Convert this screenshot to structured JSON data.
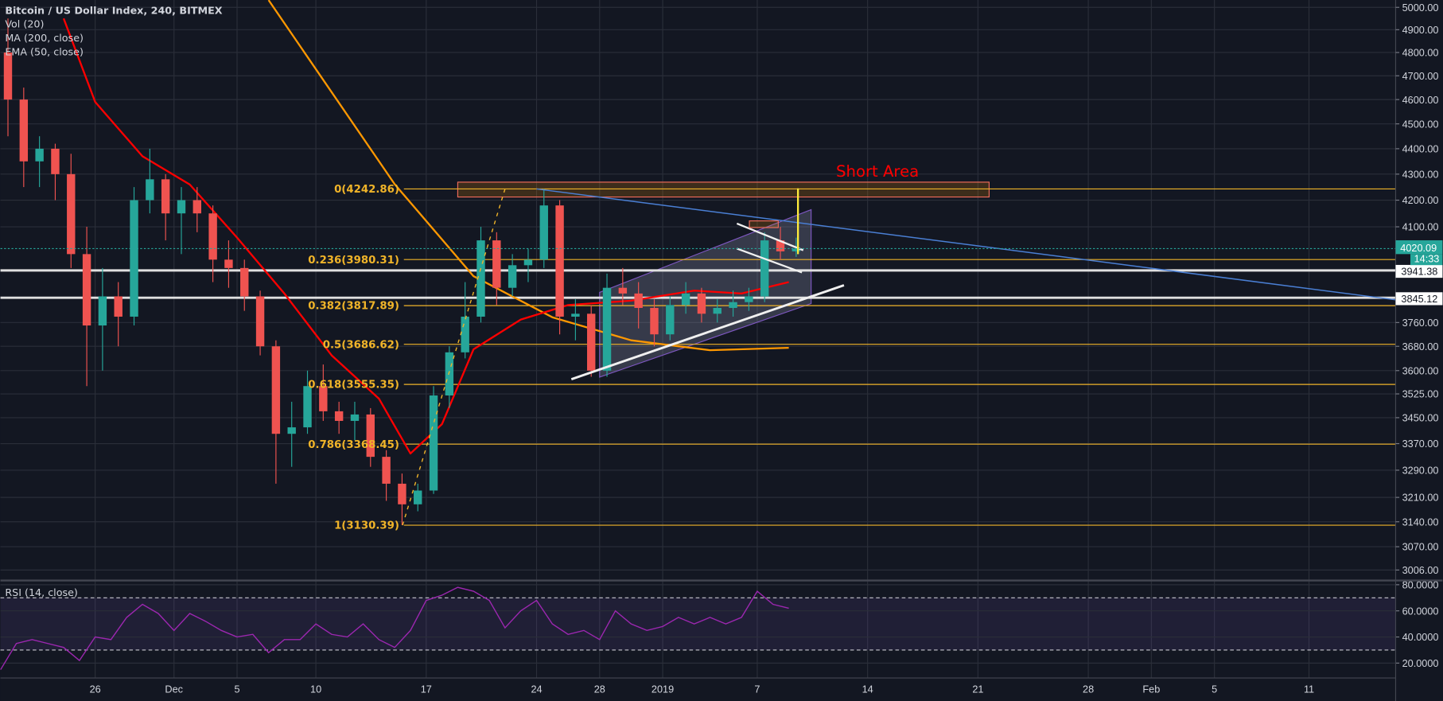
{
  "legend": {
    "title": "Bitcoin / US Dollar Index, 240, BITMEX",
    "indicators": [
      "Vol (20)",
      "MA (200, close)",
      "EMA (50, close)"
    ],
    "rsi_label": "RSI (14, close)"
  },
  "colors": {
    "background": "#131722",
    "grid": "#2a2e39",
    "up": "#26a69a",
    "down": "#ef5350",
    "ma200": "#ff9800",
    "ema50": "#ff0000",
    "fib": "#f0b429",
    "rsi": "#9c27b0",
    "trend_blue": "#4a7fd4",
    "channel": "#7e57c2",
    "short_area_text": "#ff0000"
  },
  "chart_data": [
    {
      "type": "candlestick",
      "scale": "log",
      "ylim": [
        2990,
        5030
      ],
      "xlim": [
        "2018-11-20",
        "2019-02-16"
      ],
      "grid": true,
      "price_axis_labels": [
        "5000.00",
        "4900.00",
        "4800.00",
        "4700.00",
        "4600.00",
        "4500.00",
        "4400.00",
        "4300.00",
        "4200.00",
        "4100.00",
        "3760.00",
        "3680.00",
        "3600.00",
        "3525.00",
        "3450.00",
        "3370.00",
        "3290.00",
        "3210.00",
        "3140.00",
        "3070.00",
        "3006.00"
      ],
      "time_axis": [
        {
          "date": "2018-11-26",
          "label": "26"
        },
        {
          "date": "2018-12-01",
          "label": "Dec"
        },
        {
          "date": "2018-12-05",
          "label": "5"
        },
        {
          "date": "2018-12-10",
          "label": "10"
        },
        {
          "date": "2018-12-17",
          "label": "17"
        },
        {
          "date": "2018-12-24",
          "label": "24"
        },
        {
          "date": "2018-12-28",
          "label": "28"
        },
        {
          "date": "2019-01-01",
          "label": "2019"
        },
        {
          "date": "2019-01-07",
          "label": "7"
        },
        {
          "date": "2019-01-14",
          "label": "14"
        },
        {
          "date": "2019-01-21",
          "label": "21"
        },
        {
          "date": "2019-01-28",
          "label": "28"
        },
        {
          "date": "2019-02-01",
          "label": "Feb"
        },
        {
          "date": "2019-02-05",
          "label": "5"
        },
        {
          "date": "2019-02-11",
          "label": "11"
        }
      ],
      "ohlc": [
        [
          "2018-11-20",
          4800,
          4950,
          4450,
          4600
        ],
        [
          "2018-11-21",
          4600,
          4650,
          4250,
          4350
        ],
        [
          "2018-11-22",
          4350,
          4450,
          4250,
          4400
        ],
        [
          "2018-11-23",
          4400,
          4420,
          4200,
          4300
        ],
        [
          "2018-11-24",
          4300,
          4380,
          3950,
          4000
        ],
        [
          "2018-11-25",
          4000,
          4100,
          3550,
          3750
        ],
        [
          "2018-11-26",
          3750,
          3950,
          3600,
          3850
        ],
        [
          "2018-11-27",
          3850,
          3900,
          3680,
          3780
        ],
        [
          "2018-11-28",
          3780,
          4250,
          3750,
          4200
        ],
        [
          "2018-11-29",
          4200,
          4400,
          4150,
          4280
        ],
        [
          "2018-11-30",
          4280,
          4300,
          4050,
          4150
        ],
        [
          "2018-12-01",
          4150,
          4250,
          4000,
          4200
        ],
        [
          "2018-12-02",
          4200,
          4250,
          4080,
          4150
        ],
        [
          "2018-12-03",
          4150,
          4180,
          3900,
          3980
        ],
        [
          "2018-12-04",
          3980,
          4050,
          3880,
          3950
        ],
        [
          "2018-12-05",
          3950,
          3980,
          3800,
          3850
        ],
        [
          "2018-12-06",
          3850,
          3870,
          3650,
          3680
        ],
        [
          "2018-12-07",
          3680,
          3700,
          3250,
          3400
        ],
        [
          "2018-12-08",
          3400,
          3500,
          3300,
          3420
        ],
        [
          "2018-12-09",
          3420,
          3600,
          3400,
          3550
        ],
        [
          "2018-12-10",
          3550,
          3620,
          3440,
          3470
        ],
        [
          "2018-12-11",
          3470,
          3500,
          3400,
          3440
        ],
        [
          "2018-12-12",
          3440,
          3500,
          3380,
          3460
        ],
        [
          "2018-12-13",
          3460,
          3480,
          3300,
          3330
        ],
        [
          "2018-12-14",
          3330,
          3350,
          3200,
          3250
        ],
        [
          "2018-12-15",
          3250,
          3280,
          3130.39,
          3190
        ],
        [
          "2018-12-16",
          3190,
          3250,
          3170,
          3230
        ],
        [
          "2018-12-17",
          3230,
          3550,
          3220,
          3520
        ],
        [
          "2018-12-18",
          3520,
          3680,
          3480,
          3660
        ],
        [
          "2018-12-19",
          3660,
          3900,
          3640,
          3780
        ],
        [
          "2018-12-20",
          3780,
          4100,
          3760,
          4050
        ],
        [
          "2018-12-21",
          4050,
          4080,
          3820,
          3880
        ],
        [
          "2018-12-22",
          3880,
          4000,
          3850,
          3960
        ],
        [
          "2018-12-23",
          3960,
          4020,
          3900,
          3980
        ],
        [
          "2018-12-24",
          3980,
          4242.86,
          3950,
          4180
        ],
        [
          "2018-12-25",
          4180,
          4200,
          3720,
          3780
        ],
        [
          "2018-12-26",
          3780,
          3840,
          3700,
          3790
        ],
        [
          "2018-12-27",
          3790,
          3820,
          3580,
          3600
        ],
        [
          "2018-12-28",
          3600,
          3930,
          3580,
          3880
        ],
        [
          "2018-12-29",
          3880,
          3950,
          3820,
          3860
        ],
        [
          "2018-12-30",
          3860,
          3900,
          3740,
          3810
        ],
        [
          "2018-12-31",
          3810,
          3840,
          3680,
          3720
        ],
        [
          "2019-01-01",
          3720,
          3850,
          3700,
          3820
        ],
        [
          "2019-01-02",
          3820,
          3900,
          3790,
          3860
        ],
        [
          "2019-01-03",
          3860,
          3880,
          3760,
          3790
        ],
        [
          "2019-01-04",
          3790,
          3840,
          3760,
          3810
        ],
        [
          "2019-01-05",
          3810,
          3870,
          3780,
          3830
        ],
        [
          "2019-01-06",
          3830,
          3880,
          3800,
          3850
        ],
        [
          "2019-01-07",
          3850,
          4080,
          3830,
          4050
        ],
        [
          "2019-01-08",
          4050,
          4100,
          3980,
          4010
        ],
        [
          "2019-01-09",
          4010,
          4060,
          3990,
          4020.09
        ]
      ],
      "series": [
        {
          "name": "MA (200, close)",
          "color": "#ff9800",
          "points": [
            [
              "2018-12-07",
              5033
            ],
            [
              "2018-12-15",
              4261
            ],
            [
              "2018-12-20",
              3921
            ],
            [
              "2018-12-25",
              3778
            ],
            [
              "2018-12-30",
              3700
            ],
            [
              "2019-01-04",
              3667
            ],
            [
              "2019-01-09",
              3675
            ]
          ]
        },
        {
          "name": "EMA (50, close)",
          "color": "#ff0000",
          "points": [
            [
              "2018-11-24",
              4950
            ],
            [
              "2018-11-26",
              4590
            ],
            [
              "2018-11-29",
              4370
            ],
            [
              "2018-12-02",
              4260
            ],
            [
              "2018-12-05",
              4060
            ],
            [
              "2018-12-08",
              3860
            ],
            [
              "2018-12-11",
              3650
            ],
            [
              "2018-12-14",
              3510
            ],
            [
              "2018-12-16",
              3340
            ],
            [
              "2018-12-18",
              3430
            ],
            [
              "2018-12-20",
              3670
            ],
            [
              "2018-12-23",
              3770
            ],
            [
              "2018-12-26",
              3820
            ],
            [
              "2018-12-30",
              3835
            ],
            [
              "2019-01-03",
              3870
            ],
            [
              "2019-01-06",
              3860
            ],
            [
              "2019-01-09",
              3900
            ]
          ]
        }
      ],
      "fibonacci": {
        "start_date": "2018-12-15T14:00",
        "levels": [
          {
            "label": "0(4242.86)",
            "price": 4242.86
          },
          {
            "label": "0.236(3980.31)",
            "price": 3980.31
          },
          {
            "label": "0.382(3817.89)",
            "price": 3817.89
          },
          {
            "label": "0.5(3686.62)",
            "price": 3686.62
          },
          {
            "label": "0.618(3555.35)",
            "price": 3555.35
          },
          {
            "label": "0.786(3368.45)",
            "price": 3368.45
          },
          {
            "label": "1(3130.39)",
            "price": 3130.39
          }
        ]
      },
      "horizontal_lines": [
        {
          "price": 3941.38,
          "label": "3941.38"
        },
        {
          "price": 3845.12,
          "label": "3845.12"
        }
      ],
      "last_price": {
        "price": 4020.09,
        "label": "4020.09",
        "countdown": "14:33"
      },
      "drawings": {
        "short_area": {
          "label": "Short Area",
          "from": "2018-12-19",
          "to": "2019-01-21T17:00",
          "top": 4269,
          "bottom": 4212,
          "label_at": [
            "2019-01-12",
            4290
          ]
        },
        "blue_trendline": [
          [
            "2018-12-24",
            4242.86
          ],
          [
            "2019-02-16T12:00",
            3838
          ]
        ],
        "fib_trend_dashed": [
          [
            "2018-12-15T12:00",
            3130.39
          ],
          [
            "2018-12-22",
            4242.86
          ]
        ],
        "channel": [
          [
            "2018-12-28",
            3864
          ],
          [
            "2019-01-10T10:00",
            4164
          ],
          [
            "2019-01-10T10:00",
            3825
          ],
          [
            "2018-12-28",
            3579
          ]
        ],
        "support_line": [
          [
            "2018-12-26T05:00",
            3572
          ],
          [
            "2019-01-12T12:00",
            3889
          ]
        ],
        "flag_upper": [
          [
            "2019-01-05T17:00",
            4112
          ],
          [
            "2019-01-09T22:00",
            4014
          ]
        ],
        "flag_lower": [
          [
            "2019-01-05T17:00",
            4020
          ],
          [
            "2019-01-09T20:00",
            3934
          ]
        ],
        "small_box": {
          "from": "2019-01-06T12:00",
          "to": "2019-01-08T08:00",
          "top": 4122,
          "bottom": 4097
        },
        "target_vertical": {
          "date": "2019-01-09T14:00",
          "top": 4245,
          "bottom": 4000
        }
      }
    },
    {
      "type": "line",
      "name": "RSI (14, close)",
      "ylim": [
        8,
        82
      ],
      "bands": [
        30,
        70
      ],
      "axis_labels": [
        "80.0000",
        "60.0000",
        "40.0000",
        "20.0000"
      ],
      "values": [
        [
          "2018-11-20",
          15
        ],
        [
          "2018-11-21",
          35
        ],
        [
          "2018-11-22",
          38
        ],
        [
          "2018-11-23",
          35
        ],
        [
          "2018-11-24",
          32
        ],
        [
          "2018-11-25",
          22
        ],
        [
          "2018-11-26",
          40
        ],
        [
          "2018-11-27",
          38
        ],
        [
          "2018-11-28",
          55
        ],
        [
          "2018-11-29",
          65
        ],
        [
          "2018-11-30",
          58
        ],
        [
          "2018-12-01",
          45
        ],
        [
          "2018-12-02",
          58
        ],
        [
          "2018-12-03",
          52
        ],
        [
          "2018-12-04",
          45
        ],
        [
          "2018-12-05",
          40
        ],
        [
          "2018-12-06",
          42
        ],
        [
          "2018-12-07",
          28
        ],
        [
          "2018-12-08",
          38
        ],
        [
          "2018-12-09",
          38
        ],
        [
          "2018-12-10",
          50
        ],
        [
          "2018-12-11",
          42
        ],
        [
          "2018-12-12",
          40
        ],
        [
          "2018-12-13",
          50
        ],
        [
          "2018-12-14",
          38
        ],
        [
          "2018-12-15",
          32
        ],
        [
          "2018-12-16",
          45
        ],
        [
          "2018-12-17",
          68
        ],
        [
          "2018-12-18",
          72
        ],
        [
          "2018-12-19",
          78
        ],
        [
          "2018-12-20",
          75
        ],
        [
          "2018-12-21",
          68
        ],
        [
          "2018-12-22",
          47
        ],
        [
          "2018-12-23",
          60
        ],
        [
          "2018-12-24",
          68
        ],
        [
          "2018-12-25",
          50
        ],
        [
          "2018-12-26",
          42
        ],
        [
          "2018-12-27",
          45
        ],
        [
          "2018-12-28",
          38
        ],
        [
          "2018-12-29",
          60
        ],
        [
          "2018-12-30",
          50
        ],
        [
          "2018-12-31",
          45
        ],
        [
          "2019-01-01",
          48
        ],
        [
          "2019-01-02",
          55
        ],
        [
          "2019-01-03",
          50
        ],
        [
          "2019-01-04",
          55
        ],
        [
          "2019-01-05",
          50
        ],
        [
          "2019-01-06",
          55
        ],
        [
          "2019-01-07",
          75
        ],
        [
          "2019-01-08",
          65
        ],
        [
          "2019-01-09",
          62
        ]
      ]
    }
  ]
}
